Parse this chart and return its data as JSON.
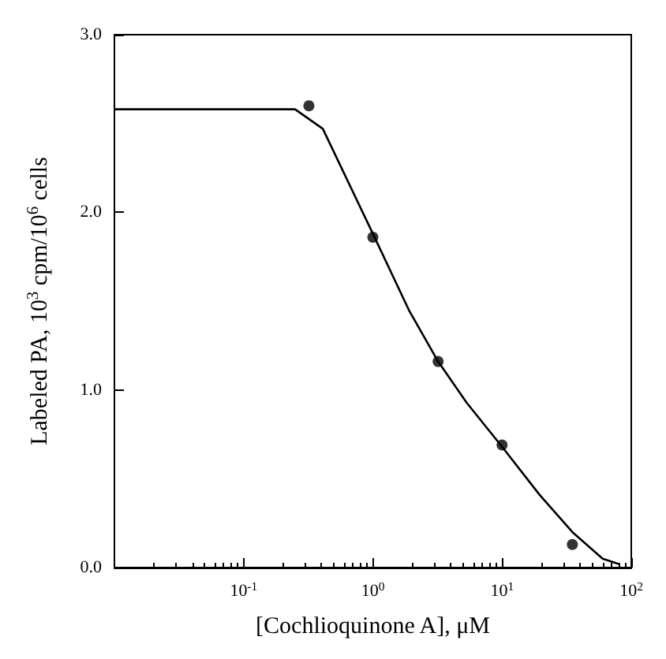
{
  "chart_data": {
    "type": "scatter",
    "xlabel": "[Cochlioquinone A], μM",
    "ylabel": "Labeled PA, 10$^{3}$ cpm/10$^{6}$ cells",
    "log": "x",
    "xlim": [
      0.01,
      100
    ],
    "xticks": [
      {
        "value": 0.1,
        "label": "10$^{-1}$"
      },
      {
        "value": 1,
        "label": "10$^{0}$"
      },
      {
        "value": 10,
        "label": "10$^{1}$"
      },
      {
        "value": 100,
        "label": "10$^{2}$"
      }
    ],
    "ylim": [
      0,
      3
    ],
    "yticks": [
      {
        "value": 0,
        "label": "0.0"
      },
      {
        "value": 1,
        "label": "1.0"
      },
      {
        "value": 2,
        "label": "2.0"
      },
      {
        "value": 3,
        "label": "3.0"
      }
    ],
    "series": [
      {
        "color": "#000000",
        "marker": "circle",
        "x": [
          0.32,
          1.0,
          3.2,
          10,
          35
        ],
        "values": [
          2.6,
          1.86,
          1.16,
          0.69,
          0.13
        ]
      },
      {
        "type": "line",
        "color": "#000000",
        "marker": "none",
        "line_style": "solid",
        "x": [
          0.01,
          0.25,
          0.41,
          1.0,
          1.9,
          3.2,
          5.3,
          10,
          19.5,
          35,
          60,
          80
        ],
        "values": [
          2.58,
          2.58,
          2.47,
          1.88,
          1.45,
          1.16,
          0.93,
          0.68,
          0.41,
          0.2,
          0.05,
          0.02
        ]
      }
    ]
  }
}
